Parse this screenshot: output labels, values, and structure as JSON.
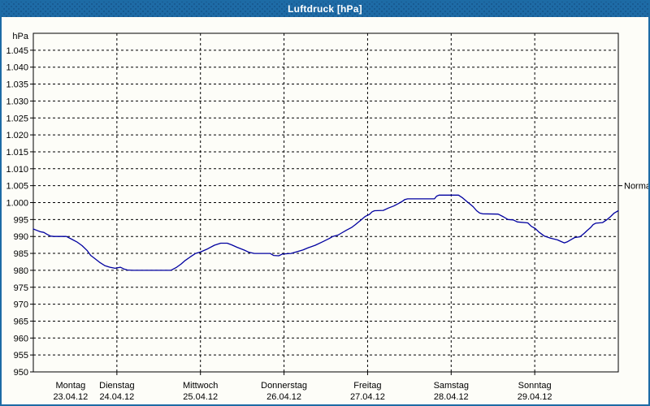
{
  "window": {
    "title": "Luftdruck [hPa]"
  },
  "colors": {
    "titlebar": "#1e6ba6",
    "frame": "#1d6ba5",
    "background": "#fdfdf8",
    "plot_border": "#000000",
    "grid": "#000000",
    "line": "#0000a0",
    "text": "#000000"
  },
  "chart_data": {
    "type": "line",
    "title": "Luftdruck [hPa]",
    "unit": "hPa",
    "ylim": [
      950,
      1050
    ],
    "grid": "dashed",
    "y_axis_unit_label": "hPa",
    "y_ticks": [
      {
        "v": 1045,
        "label": "1.045"
      },
      {
        "v": 1040,
        "label": "1.040"
      },
      {
        "v": 1035,
        "label": "1.035"
      },
      {
        "v": 1030,
        "label": "1.030"
      },
      {
        "v": 1025,
        "label": "1.025"
      },
      {
        "v": 1020,
        "label": "1.020"
      },
      {
        "v": 1015,
        "label": "1.015"
      },
      {
        "v": 1010,
        "label": "1.010"
      },
      {
        "v": 1005,
        "label": "1.005"
      },
      {
        "v": 1000,
        "label": "1.000"
      },
      {
        "v": 995,
        "label": "995"
      },
      {
        "v": 990,
        "label": "990"
      },
      {
        "v": 985,
        "label": "985"
      },
      {
        "v": 980,
        "label": "980"
      },
      {
        "v": 975,
        "label": "975"
      },
      {
        "v": 970,
        "label": "970"
      },
      {
        "v": 965,
        "label": "965"
      },
      {
        "v": 960,
        "label": "960"
      },
      {
        "v": 955,
        "label": "955"
      },
      {
        "v": 950,
        "label": "950"
      }
    ],
    "hours_total": 168,
    "x_days": [
      {
        "name": "Montag",
        "date": "23.04.12",
        "start_hour": 0,
        "label_hour": 10.7
      },
      {
        "name": "Dienstag",
        "date": "24.04.12",
        "start_hour": 24,
        "label_hour": 24
      },
      {
        "name": "Mittwoch",
        "date": "25.04.12",
        "start_hour": 48,
        "label_hour": 48
      },
      {
        "name": "Donnerstag",
        "date": "26.04.12",
        "start_hour": 72,
        "label_hour": 72
      },
      {
        "name": "Freitag",
        "date": "27.04.12",
        "start_hour": 96,
        "label_hour": 96
      },
      {
        "name": "Samstag",
        "date": "28.04.12",
        "start_hour": 120,
        "label_hour": 120
      },
      {
        "name": "Sonntag",
        "date": "29.04.12",
        "start_hour": 144,
        "label_hour": 144
      }
    ],
    "normal_marker": {
      "label": "Normal",
      "value": 1005
    },
    "series": [
      {
        "name": "Luftdruck",
        "color": "#0000a0",
        "points": [
          [
            0,
            992.2
          ],
          [
            1,
            991.8
          ],
          [
            2,
            991.4
          ],
          [
            3,
            991.2
          ],
          [
            4,
            990.6
          ],
          [
            5,
            990.1
          ],
          [
            6,
            990.0
          ],
          [
            9.5,
            990.0
          ],
          [
            11,
            989.2
          ],
          [
            12.5,
            988.4
          ],
          [
            14,
            987.3
          ],
          [
            15.5,
            985.8
          ],
          [
            16.5,
            984.4
          ],
          [
            17.5,
            983.6
          ],
          [
            19,
            982.4
          ],
          [
            20.5,
            981.4
          ],
          [
            22,
            980.9
          ],
          [
            23.5,
            980.6
          ],
          [
            25,
            980.9
          ],
          [
            26,
            980.4
          ],
          [
            27,
            980.1
          ],
          [
            28.5,
            980.0
          ],
          [
            39.5,
            980.0
          ],
          [
            41,
            980.8
          ],
          [
            42.5,
            981.9
          ],
          [
            43.6,
            982.9
          ],
          [
            45,
            983.9
          ],
          [
            46.6,
            985.0
          ],
          [
            48,
            985.4
          ],
          [
            50,
            986.3
          ],
          [
            52,
            987.4
          ],
          [
            53.8,
            988.0
          ],
          [
            55.7,
            988.0
          ],
          [
            57,
            987.5
          ],
          [
            58.5,
            986.8
          ],
          [
            60.5,
            986.0
          ],
          [
            62,
            985.3
          ],
          [
            63.5,
            985.0
          ],
          [
            68,
            985.0
          ],
          [
            69,
            984.4
          ],
          [
            70.5,
            984.3
          ],
          [
            71.5,
            984.8
          ],
          [
            74,
            985.0
          ],
          [
            77.4,
            986.0
          ],
          [
            79,
            986.7
          ],
          [
            81,
            987.4
          ],
          [
            83,
            988.4
          ],
          [
            85,
            989.4
          ],
          [
            86,
            990.0
          ],
          [
            87.5,
            990.4
          ],
          [
            88.5,
            991.0
          ],
          [
            90,
            991.9
          ],
          [
            91.5,
            992.7
          ],
          [
            92.5,
            993.5
          ],
          [
            94,
            994.8
          ],
          [
            95.3,
            995.9
          ],
          [
            96.5,
            996.5
          ],
          [
            97.3,
            997.3
          ],
          [
            98,
            997.6
          ],
          [
            100.5,
            997.7
          ],
          [
            102,
            998.4
          ],
          [
            103.5,
            999.0
          ],
          [
            105,
            999.8
          ],
          [
            106,
            1000.4
          ],
          [
            106.7,
            1000.9
          ],
          [
            107.5,
            1001.1
          ],
          [
            115.2,
            1001.1
          ],
          [
            115.8,
            1001.9
          ],
          [
            116.5,
            1002.2
          ],
          [
            122.1,
            1002.2
          ],
          [
            123.3,
            1001.4
          ],
          [
            124.4,
            1000.4
          ],
          [
            125.4,
            999.6
          ],
          [
            126.3,
            998.8
          ],
          [
            127.3,
            997.6
          ],
          [
            128.2,
            996.9
          ],
          [
            129,
            996.7
          ],
          [
            133.5,
            996.6
          ],
          [
            135,
            995.8
          ],
          [
            136.3,
            995.0
          ],
          [
            137.8,
            994.9
          ],
          [
            139,
            994.3
          ],
          [
            142,
            994.0
          ],
          [
            143,
            993.0
          ],
          [
            144.2,
            992.3
          ],
          [
            145.2,
            991.3
          ],
          [
            146.8,
            990.1
          ],
          [
            148.5,
            989.5
          ],
          [
            150.5,
            989.0
          ],
          [
            151.8,
            988.4
          ],
          [
            152.5,
            988.1
          ],
          [
            153.3,
            988.4
          ],
          [
            154,
            988.8
          ],
          [
            155,
            989.4
          ],
          [
            155.5,
            989.7
          ],
          [
            157,
            989.9
          ],
          [
            158.3,
            991.0
          ],
          [
            159,
            991.7
          ],
          [
            160,
            992.6
          ],
          [
            160.8,
            993.5
          ],
          [
            161.5,
            993.9
          ],
          [
            163.5,
            994.1
          ],
          [
            164.8,
            995.0
          ],
          [
            165.8,
            995.9
          ],
          [
            166.8,
            996.9
          ],
          [
            168,
            997.6
          ]
        ]
      }
    ]
  }
}
